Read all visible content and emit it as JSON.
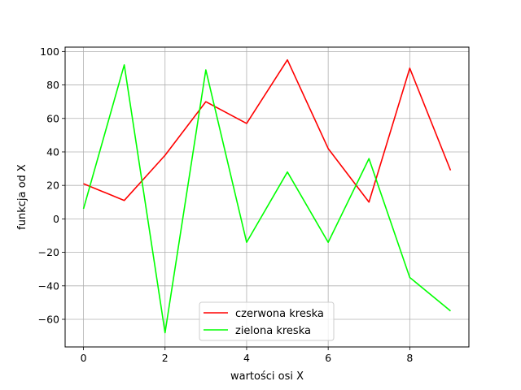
{
  "chart_data": {
    "type": "line",
    "title": "",
    "xlabel": "wartości osi X",
    "ylabel": "funkcja od X",
    "x": [
      0,
      1,
      2,
      3,
      4,
      5,
      6,
      7,
      8,
      9
    ],
    "xlim": [
      -0.45,
      9.45
    ],
    "ylim": [
      -76.5,
      102.6
    ],
    "xticks": [
      0,
      2,
      4,
      6,
      8
    ],
    "yticks": [
      -60,
      -40,
      -20,
      0,
      20,
      40,
      60,
      80,
      100
    ],
    "xtick_labels": [
      "0",
      "2",
      "4",
      "6",
      "8"
    ],
    "ytick_labels": [
      "−60",
      "−40",
      "−20",
      "0",
      "20",
      "40",
      "60",
      "80",
      "100"
    ],
    "grid": true,
    "legend_position": "bottom-center",
    "series": [
      {
        "name": "czerwona kreska",
        "color": "#ff0000",
        "values": [
          21,
          11,
          38,
          70,
          57,
          95,
          42,
          10,
          90,
          29
        ]
      },
      {
        "name": "zielona kreska",
        "color": "#00ff00",
        "values": [
          6,
          92,
          -68,
          89,
          -14,
          28,
          -14,
          36,
          -35,
          -55
        ]
      }
    ]
  }
}
